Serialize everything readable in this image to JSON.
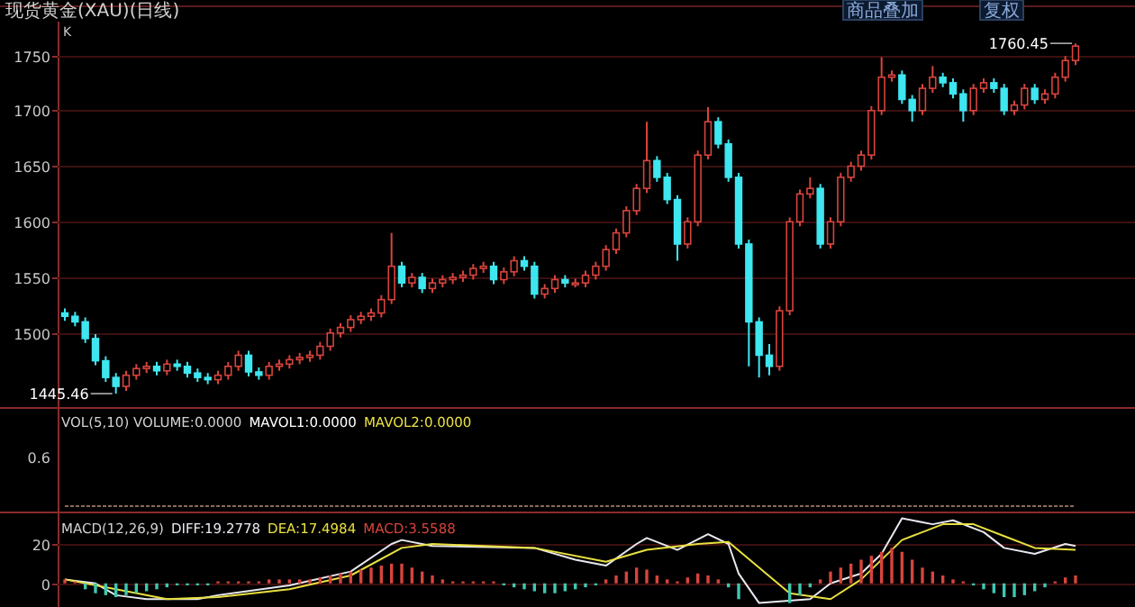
{
  "chart_data": [
    {
      "type": "candlestick",
      "title": "现货黄金(XAU)(日线)",
      "annotations": [
        "K",
        "商品叠加",
        "复权",
        "1445.46",
        "1760.45"
      ],
      "categories": [
        null,
        null,
        null,
        null,
        null,
        null,
        null,
        null,
        null,
        null,
        null,
        null,
        null,
        null,
        null,
        null,
        null,
        null,
        null,
        null,
        null,
        null,
        null,
        null,
        null,
        null,
        null,
        null,
        null,
        null,
        null,
        null,
        null,
        null,
        null,
        null,
        null,
        null,
        null,
        null,
        null,
        null,
        null,
        null,
        null,
        null,
        null,
        null,
        null,
        null,
        null,
        null,
        null,
        null,
        null,
        null,
        null,
        null,
        null,
        null,
        null,
        null,
        null,
        null,
        null,
        null,
        null,
        null,
        null,
        null,
        null,
        null,
        null,
        null,
        null,
        null,
        null,
        null,
        null,
        null,
        null,
        null,
        null,
        null,
        null,
        null,
        null,
        null,
        null,
        null,
        null,
        null,
        null,
        null,
        null,
        null,
        null,
        null,
        null,
        null
      ],
      "colors": [
        "#3ee6f0",
        "#3ee6f0",
        "#3ee6f0",
        "#3ee6f0",
        "#3ee6f0",
        "#3ee6f0",
        "#d8443c",
        "#d8443c",
        "#d8443c",
        "#3ee6f0",
        "#d8443c",
        "#3ee6f0",
        "#3ee6f0",
        "#3ee6f0",
        "#3ee6f0",
        "#d8443c",
        "#d8443c",
        "#d8443c",
        "#3ee6f0",
        "#3ee6f0",
        "#d8443c",
        "#d8443c",
        "#d8443c",
        "#d8443c",
        "#d8443c",
        "#d8443c",
        "#d8443c",
        "#d8443c",
        "#d8443c",
        "#d8443c",
        "#d8443c",
        "#d8443c",
        "#d8443c",
        "#3ee6f0",
        "#d8443c",
        "#3ee6f0",
        "#d8443c",
        "#d8443c",
        "#d8443c",
        "#d8443c",
        "#d8443c",
        "#d8443c",
        "#3ee6f0",
        "#d8443c",
        "#d8443c",
        "#3ee6f0",
        "#3ee6f0",
        "#d8443c",
        "#d8443c",
        "#3ee6f0",
        "#d8443c",
        "#d8443c",
        "#d8443c",
        "#d8443c",
        "#d8443c",
        "#d8443c",
        "#d8443c",
        "#d8443c",
        "#3ee6f0",
        "#3ee6f0",
        "#3ee6f0",
        "#d8443c",
        "#d8443c",
        "#d8443c",
        "#3ee6f0",
        "#3ee6f0",
        "#3ee6f0",
        "#3ee6f0",
        "#3ee6f0",
        "#3ee6f0",
        "#d8443c",
        "#d8443c",
        "#d8443c",
        "#d8443c",
        "#3ee6f0",
        "#d8443c",
        "#d8443c",
        "#d8443c",
        "#d8443c",
        "#d8443c",
        "#d8443c",
        "#d8443c",
        "#3ee6f0",
        "#3ee6f0",
        "#d8443c",
        "#d8443c",
        "#3ee6f0",
        "#3ee6f0",
        "#3ee6f0",
        "#d8443c",
        "#d8443c",
        "#3ee6f0",
        "#3ee6f0",
        "#d8443c",
        "#d8443c",
        "#3ee6f0",
        "#d8443c",
        "#d8443c",
        "#d8443c",
        "#d8443c"
      ],
      "ohlc": [
        [
          1518,
          1522,
          1511,
          1515
        ],
        [
          1515,
          1519,
          1506,
          1510
        ],
        [
          1510,
          1514,
          1491,
          1495
        ],
        [
          1495,
          1499,
          1471,
          1475
        ],
        [
          1475,
          1479,
          1456,
          1460
        ],
        [
          1460,
          1464,
          1445.46,
          1452
        ],
        [
          1452,
          1466,
          1448,
          1462
        ],
        [
          1462,
          1472,
          1458,
          1468
        ],
        [
          1468,
          1474,
          1464,
          1470
        ],
        [
          1470,
          1474,
          1462,
          1466
        ],
        [
          1466,
          1476,
          1462,
          1472
        ],
        [
          1472,
          1476,
          1466,
          1470
        ],
        [
          1470,
          1474,
          1460,
          1464
        ],
        [
          1464,
          1468,
          1456,
          1460
        ],
        [
          1460,
          1464,
          1454,
          1458
        ],
        [
          1458,
          1466,
          1454,
          1462
        ],
        [
          1462,
          1474,
          1458,
          1470
        ],
        [
          1470,
          1484,
          1466,
          1480
        ],
        [
          1480,
          1484,
          1461,
          1465
        ],
        [
          1465,
          1469,
          1458,
          1462
        ],
        [
          1462,
          1474,
          1458,
          1470
        ],
        [
          1470,
          1476,
          1466,
          1472
        ],
        [
          1472,
          1480,
          1468,
          1476
        ],
        [
          1476,
          1482,
          1472,
          1478
        ],
        [
          1478,
          1484,
          1474,
          1480
        ],
        [
          1480,
          1492,
          1476,
          1488
        ],
        [
          1488,
          1504,
          1484,
          1500
        ],
        [
          1500,
          1509,
          1496,
          1505
        ],
        [
          1505,
          1516,
          1501,
          1512
        ],
        [
          1512,
          1519,
          1508,
          1515
        ],
        [
          1515,
          1522,
          1511,
          1518
        ],
        [
          1518,
          1534,
          1514,
          1530
        ],
        [
          1530,
          1590,
          1526,
          1560
        ],
        [
          1560,
          1564,
          1541,
          1545
        ],
        [
          1545,
          1554,
          1541,
          1550
        ],
        [
          1550,
          1554,
          1536,
          1540
        ],
        [
          1540,
          1549,
          1536,
          1545
        ],
        [
          1545,
          1552,
          1541,
          1548
        ],
        [
          1548,
          1554,
          1544,
          1550
        ],
        [
          1550,
          1556,
          1546,
          1552
        ],
        [
          1552,
          1562,
          1548,
          1558
        ],
        [
          1558,
          1564,
          1554,
          1560
        ],
        [
          1560,
          1564,
          1544,
          1548
        ],
        [
          1548,
          1559,
          1544,
          1555
        ],
        [
          1555,
          1569,
          1551,
          1565
        ],
        [
          1565,
          1569,
          1556,
          1560
        ],
        [
          1560,
          1564,
          1531,
          1535
        ],
        [
          1535,
          1544,
          1531,
          1540
        ],
        [
          1540,
          1552,
          1536,
          1548
        ],
        [
          1548,
          1552,
          1541,
          1545
        ],
        [
          1545,
          1549,
          1541,
          1545
        ],
        [
          1545,
          1556,
          1541,
          1552
        ],
        [
          1552,
          1564,
          1548,
          1560
        ],
        [
          1560,
          1579,
          1556,
          1575
        ],
        [
          1575,
          1594,
          1571,
          1590
        ],
        [
          1590,
          1614,
          1586,
          1610
        ],
        [
          1610,
          1634,
          1606,
          1630
        ],
        [
          1630,
          1690,
          1626,
          1655
        ],
        [
          1655,
          1659,
          1636,
          1640
        ],
        [
          1640,
          1644,
          1616,
          1620
        ],
        [
          1620,
          1624,
          1565,
          1580
        ],
        [
          1580,
          1604,
          1576,
          1600
        ],
        [
          1600,
          1664,
          1596,
          1660
        ],
        [
          1660,
          1703,
          1656,
          1690
        ],
        [
          1690,
          1694,
          1666,
          1670
        ],
        [
          1670,
          1674,
          1636,
          1640
        ],
        [
          1640,
          1644,
          1576,
          1580
        ],
        [
          1580,
          1584,
          1470,
          1510
        ],
        [
          1510,
          1514,
          1460,
          1480
        ],
        [
          1480,
          1490,
          1462,
          1470
        ],
        [
          1470,
          1524,
          1466,
          1520
        ],
        [
          1520,
          1604,
          1516,
          1600
        ],
        [
          1600,
          1629,
          1596,
          1625
        ],
        [
          1625,
          1640,
          1621,
          1630
        ],
        [
          1630,
          1634,
          1576,
          1580
        ],
        [
          1580,
          1604,
          1576,
          1600
        ],
        [
          1600,
          1644,
          1596,
          1640
        ],
        [
          1640,
          1654,
          1636,
          1650
        ],
        [
          1650,
          1664,
          1646,
          1660
        ],
        [
          1660,
          1704,
          1656,
          1700
        ],
        [
          1700,
          1748,
          1696,
          1730
        ],
        [
          1730,
          1736,
          1726,
          1732
        ],
        [
          1732,
          1736,
          1706,
          1710
        ],
        [
          1710,
          1714,
          1690,
          1700
        ],
        [
          1700,
          1724,
          1696,
          1720
        ],
        [
          1720,
          1740,
          1716,
          1730
        ],
        [
          1730,
          1734,
          1721,
          1725
        ],
        [
          1725,
          1729,
          1711,
          1715
        ],
        [
          1715,
          1719,
          1690,
          1700
        ],
        [
          1700,
          1724,
          1696,
          1720
        ],
        [
          1720,
          1729,
          1716,
          1725
        ],
        [
          1725,
          1729,
          1716,
          1720
        ],
        [
          1720,
          1724,
          1696,
          1700
        ],
        [
          1700,
          1709,
          1696,
          1705
        ],
        [
          1705,
          1724,
          1701,
          1720
        ],
        [
          1720,
          1724,
          1706,
          1710
        ],
        [
          1710,
          1719,
          1706,
          1715
        ],
        [
          1715,
          1734,
          1711,
          1730
        ],
        [
          1730,
          1749,
          1726,
          1745
        ],
        [
          1745,
          1760.45,
          1741,
          1758
        ]
      ],
      "ylim": [
        1435,
        1780
      ],
      "yticks": [
        1500,
        1550,
        1600,
        1650,
        1700,
        1750
      ],
      "grid": "y"
    },
    {
      "type": "other",
      "title": "VOL(5,10) VOLUME:0.0000",
      "annotations": [
        "0.6",
        "MAVOL1:0.0000",
        "MAVOL2:0.0000"
      ]
    },
    {
      "type": "line",
      "title": "MACD(12,26,9)",
      "ylim": [
        -12,
        36
      ],
      "yticks": [
        0,
        20
      ],
      "grid": "y",
      "tick_labels": "y",
      "categories": [
        null,
        null,
        null,
        null,
        null,
        null,
        null,
        null,
        null,
        null,
        null,
        null,
        null,
        null,
        null,
        null,
        null,
        null,
        null,
        null,
        null,
        null,
        null,
        null,
        null,
        null,
        null,
        null,
        null,
        null,
        null,
        null,
        null,
        null,
        null,
        null,
        null,
        null,
        null,
        null,
        null,
        null,
        null,
        null,
        null,
        null,
        null,
        null,
        null,
        null,
        null,
        null,
        null,
        null,
        null,
        null,
        null,
        null,
        null,
        null,
        null,
        null,
        null,
        null,
        null,
        null,
        null,
        null,
        null,
        null,
        null,
        null,
        null,
        null,
        null,
        null,
        null,
        null,
        null,
        null,
        null,
        null,
        null,
        null,
        null,
        null,
        null,
        null,
        null,
        null,
        null,
        null,
        null,
        null,
        null,
        null,
        null,
        null,
        null,
        null
      ],
      "series": [
        {
          "name": "DIFF:19.2778",
          "color": "#e8e8f0",
          "values": [
            2,
            null,
            null,
            0,
            null,
            -6,
            null,
            null,
            -8,
            null,
            null,
            null,
            null,
            -8,
            null,
            -6,
            null,
            null,
            null,
            null,
            null,
            null,
            -1,
            null,
            null,
            null,
            null,
            null,
            6,
            null,
            null,
            null,
            20,
            22,
            null,
            null,
            19,
            null,
            null,
            null,
            null,
            null,
            null,
            null,
            null,
            null,
            18,
            null,
            null,
            null,
            12,
            null,
            null,
            9,
            null,
            null,
            20,
            23,
            null,
            null,
            17,
            null,
            null,
            25,
            null,
            20,
            5,
            null,
            -10,
            null,
            null,
            null,
            null,
            -8,
            null,
            0,
            null,
            null,
            5,
            null,
            15,
            null,
            33,
            null,
            null,
            30,
            null,
            32,
            null,
            null,
            26,
            null,
            18,
            null,
            null,
            15,
            null,
            null,
            20,
            19
          ]
        },
        {
          "name": "DEA:17.4984",
          "color": "#e8e040",
          "values": [
            2,
            null,
            null,
            null,
            null,
            -3,
            null,
            null,
            null,
            null,
            -8,
            null,
            null,
            null,
            null,
            -7,
            null,
            null,
            null,
            null,
            null,
            null,
            -3,
            null,
            null,
            null,
            null,
            null,
            4,
            null,
            null,
            null,
            null,
            18,
            null,
            null,
            20,
            null,
            null,
            null,
            null,
            null,
            null,
            null,
            null,
            null,
            18,
            null,
            null,
            null,
            null,
            null,
            null,
            11,
            null,
            null,
            null,
            17,
            null,
            null,
            null,
            null,
            20,
            null,
            null,
            21,
            null,
            null,
            8,
            null,
            null,
            -5,
            null,
            null,
            null,
            -8,
            null,
            null,
            2,
            null,
            null,
            null,
            22,
            null,
            null,
            null,
            30,
            null,
            null,
            30,
            null,
            null,
            24,
            null,
            null,
            18,
            null,
            null,
            null,
            17
          ]
        },
        {
          "name": "MACD:3.5588",
          "type": "bar",
          "values": [
            2,
            1,
            -3,
            -5,
            -6,
            -7,
            -6,
            -5,
            -4,
            -3,
            -2,
            -1,
            -1,
            -1,
            -1,
            1,
            1,
            1,
            1,
            1,
            2,
            2,
            2,
            2,
            2,
            3,
            4,
            5,
            6,
            7,
            8,
            9,
            10,
            10,
            8,
            6,
            4,
            2,
            1,
            1,
            1,
            1,
            1,
            -1,
            -2,
            -3,
            -4,
            -5,
            -5,
            -4,
            -3,
            -2,
            -1,
            2,
            4,
            6,
            8,
            7,
            4,
            2,
            1,
            3,
            5,
            4,
            2,
            -2,
            -8,
            null,
            null,
            null,
            null,
            -10,
            -6,
            -2,
            2,
            6,
            8,
            10,
            12,
            14,
            16,
            18,
            16,
            12,
            8,
            6,
            4,
            2,
            1,
            -1,
            -3,
            -5,
            -7,
            -7,
            -6,
            -4,
            -2,
            1,
            3,
            4
          ],
          "colors": [
            "#d8443c",
            "#d8443c",
            "#3ec8b0",
            "#3ec8b0",
            "#3ec8b0",
            "#3ec8b0",
            "#3ec8b0",
            "#3ec8b0",
            "#3ec8b0",
            "#3ec8b0",
            "#3ec8b0",
            "#3ec8b0",
            "#3ec8b0",
            "#3ec8b0",
            "#3ec8b0",
            "#d8443c",
            "#d8443c",
            "#d8443c",
            "#d8443c",
            "#d8443c",
            "#d8443c",
            "#d8443c",
            "#d8443c",
            "#d8443c",
            "#d8443c",
            "#d8443c",
            "#d8443c",
            "#d8443c",
            "#d8443c",
            "#d8443c",
            "#d8443c",
            "#d8443c",
            "#d8443c",
            "#d8443c",
            "#d8443c",
            "#d8443c",
            "#d8443c",
            "#d8443c",
            "#d8443c",
            "#d8443c",
            "#d8443c",
            "#d8443c",
            "#d8443c",
            "#3ec8b0",
            "#3ec8b0",
            "#3ec8b0",
            "#3ec8b0",
            "#3ec8b0",
            "#3ec8b0",
            "#3ec8b0",
            "#3ec8b0",
            "#3ec8b0",
            "#3ec8b0",
            "#d8443c",
            "#d8443c",
            "#d8443c",
            "#d8443c",
            "#d8443c",
            "#d8443c",
            "#d8443c",
            "#d8443c",
            "#d8443c",
            "#d8443c",
            "#d8443c",
            "#d8443c",
            "#3ec8b0",
            "#3ec8b0",
            null,
            null,
            null,
            null,
            "#3ec8b0",
            "#3ec8b0",
            "#3ec8b0",
            "#d8443c",
            "#d8443c",
            "#d8443c",
            "#d8443c",
            "#d8443c",
            "#d8443c",
            "#d8443c",
            "#d8443c",
            "#d8443c",
            "#d8443c",
            "#d8443c",
            "#d8443c",
            "#d8443c",
            "#d8443c",
            "#d8443c",
            "#3ec8b0",
            "#3ec8b0",
            "#3ec8b0",
            "#3ec8b0",
            "#3ec8b0",
            "#3ec8b0",
            "#3ec8b0",
            "#3ec8b0",
            "#d8443c",
            "#d8443c",
            "#d8443c"
          ]
        }
      ]
    }
  ]
}
